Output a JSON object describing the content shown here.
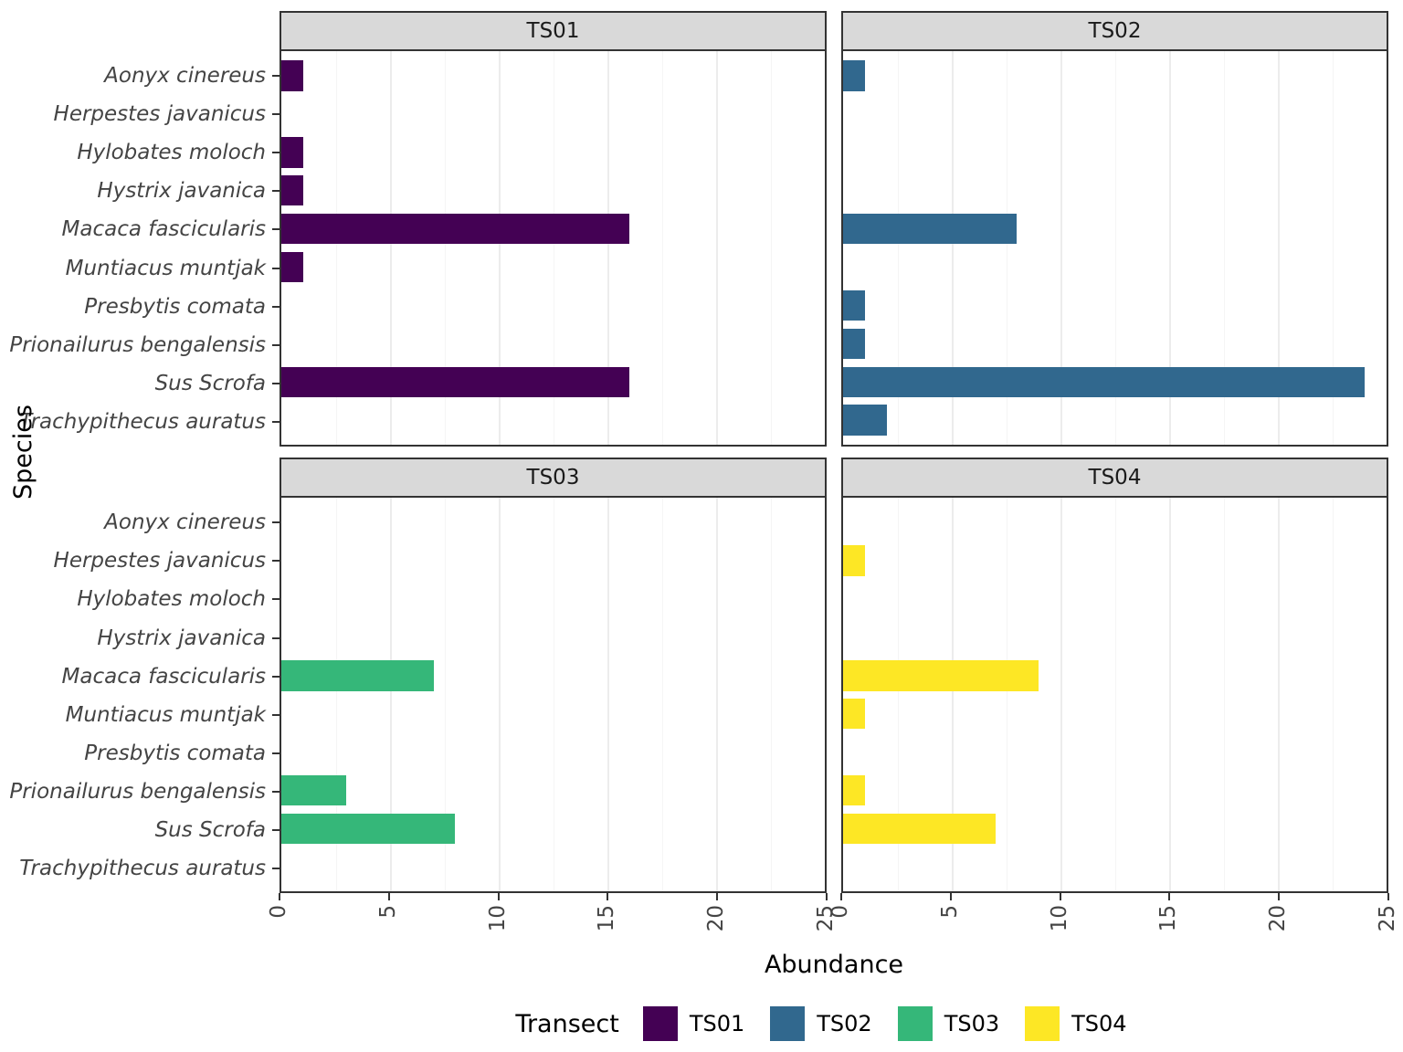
{
  "chart_data": {
    "type": "bar",
    "orientation": "horizontal",
    "title": "",
    "xlabel": "Abundance",
    "ylabel": "Species",
    "legend_title": "Transect",
    "xlim": [
      0,
      25
    ],
    "xticks": [
      0,
      5,
      10,
      15,
      20,
      25
    ],
    "categories": [
      "Aonyx cinereus",
      "Herpestes javanicus",
      "Hylobates moloch",
      "Hystrix javanica",
      "Macaca fascicularis",
      "Muntiacus muntjak",
      "Presbytis comata",
      "Prionailurus bengalensis",
      "Sus Scrofa",
      "Trachypithecus auratus"
    ],
    "series": [
      {
        "name": "TS01",
        "color": "#440154",
        "values": [
          1,
          0,
          1,
          1,
          16,
          1,
          0,
          0,
          16,
          0
        ]
      },
      {
        "name": "TS02",
        "color": "#31688e",
        "values": [
          1,
          0,
          0,
          0,
          8,
          0,
          1,
          1,
          24,
          2
        ]
      },
      {
        "name": "TS03",
        "color": "#35b779",
        "values": [
          0,
          0,
          0,
          0,
          7,
          0,
          0,
          3,
          8,
          0
        ]
      },
      {
        "name": "TS04",
        "color": "#fde725",
        "values": [
          0,
          1,
          0,
          0,
          9,
          1,
          0,
          1,
          7,
          0
        ]
      }
    ]
  }
}
